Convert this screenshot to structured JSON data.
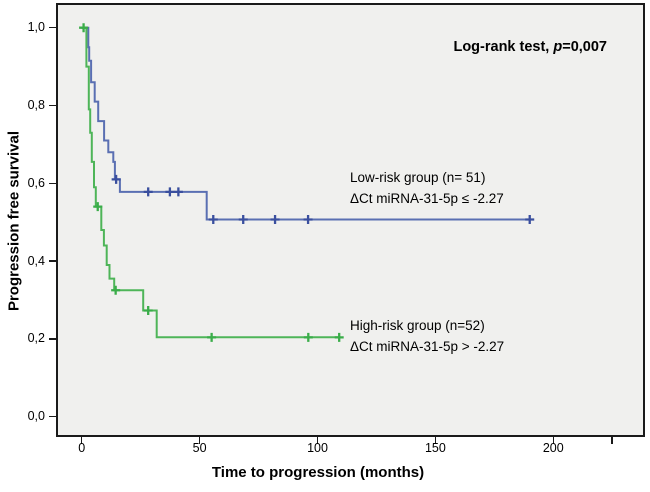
{
  "figure": {
    "background": "#ffffff",
    "plot_background": "#f0f0ee",
    "frame_color": "#1a1a1a"
  },
  "y_axis": {
    "title": "Progression free survival",
    "ticks": [
      {
        "label": "1,0",
        "value": 1.0
      },
      {
        "label": "0,8",
        "value": 0.8
      },
      {
        "label": "0,6",
        "value": 0.6
      },
      {
        "label": "0,4",
        "value": 0.4
      },
      {
        "label": "0,2",
        "value": 0.2
      },
      {
        "label": "0,0",
        "value": 0.0
      }
    ]
  },
  "x_axis": {
    "title": "Time to progression (months)",
    "ticks": [
      {
        "label": "0",
        "value": 0
      },
      {
        "label": "50",
        "value": 50
      },
      {
        "label": "100",
        "value": 100
      },
      {
        "label": "150",
        "value": 150
      },
      {
        "label": "200",
        "value": 200
      },
      {
        "label": "",
        "value": 225
      }
    ]
  },
  "annotation": {
    "text_regular": "Log-rank test, ",
    "text_italic": "p",
    "text_value": "=0,007"
  },
  "groups": [
    {
      "id": "low-risk",
      "line1": "Low-risk group (n= 51)",
      "line2": "ΔCt miRNA-31-5p ≤ -2.27",
      "color": "#5a6fb2"
    },
    {
      "id": "high-risk",
      "line1": "High-risk group (n=52)",
      "line2": "ΔCt miRNA-31-5p > -2.27",
      "color": "#4eb558"
    }
  ],
  "chart_data": {
    "type": "line",
    "subtype": "kaplan-meier-step",
    "title": "",
    "xlabel": "Time to progression (months)",
    "ylabel": "Progression free survival",
    "xlim": [
      -11,
      239
    ],
    "ylim": [
      -0.05,
      1.06
    ],
    "x_ticks": [
      0,
      50,
      100,
      150,
      200
    ],
    "y_ticks": [
      0.0,
      0.2,
      0.4,
      0.6,
      0.8,
      1.0
    ],
    "grid": false,
    "legend_position": "inline-annotations",
    "annotation": "Log-rank test, p=0,007",
    "series": [
      {
        "name": "Low-risk group (n= 51) ΔCt miRNA-31-5p ≤ -2.27",
        "color": "#5a6fb2",
        "censor_color": "#3a4f9e",
        "steps": [
          [
            0,
            1.0
          ],
          [
            2.8,
            0.95
          ],
          [
            3.2,
            0.915
          ],
          [
            4.0,
            0.86
          ],
          [
            5.5,
            0.81
          ],
          [
            7.0,
            0.76
          ],
          [
            9.5,
            0.71
          ],
          [
            11.3,
            0.68
          ],
          [
            13.4,
            0.655
          ],
          [
            14.1,
            0.61
          ],
          [
            16.2,
            0.578
          ],
          [
            53,
            0.507
          ]
        ],
        "end_time": 191.5,
        "censor_marks": [
          [
            14.6,
            0.61
          ],
          [
            28.2,
            0.578
          ],
          [
            37.4,
            0.578
          ],
          [
            41.0,
            0.578
          ],
          [
            55.8,
            0.507
          ],
          [
            68.5,
            0.507
          ],
          [
            82.0,
            0.507
          ],
          [
            96.0,
            0.507
          ],
          [
            190.0,
            0.507
          ]
        ]
      },
      {
        "name": "High-risk group (n=52) ΔCt miRNA-31-5p > -2.27",
        "color": "#4eb558",
        "censor_color": "#3aad49",
        "steps": [
          [
            0,
            1.0
          ],
          [
            2.0,
            0.9
          ],
          [
            3.0,
            0.79
          ],
          [
            3.6,
            0.73
          ],
          [
            4.3,
            0.655
          ],
          [
            5.2,
            0.59
          ],
          [
            6.0,
            0.54
          ],
          [
            8.3,
            0.48
          ],
          [
            9.4,
            0.44
          ],
          [
            10.6,
            0.39
          ],
          [
            11.8,
            0.355
          ],
          [
            13.8,
            0.325
          ],
          [
            26.1,
            0.273
          ],
          [
            31.8,
            0.204
          ]
        ],
        "end_time": 109.6,
        "censor_marks": [
          [
            0.8,
            1.0
          ],
          [
            6.8,
            0.54
          ],
          [
            14.4,
            0.325
          ],
          [
            28.2,
            0.273
          ],
          [
            55.1,
            0.204
          ],
          [
            96.1,
            0.204
          ],
          [
            109.2,
            0.204
          ]
        ]
      }
    ]
  }
}
